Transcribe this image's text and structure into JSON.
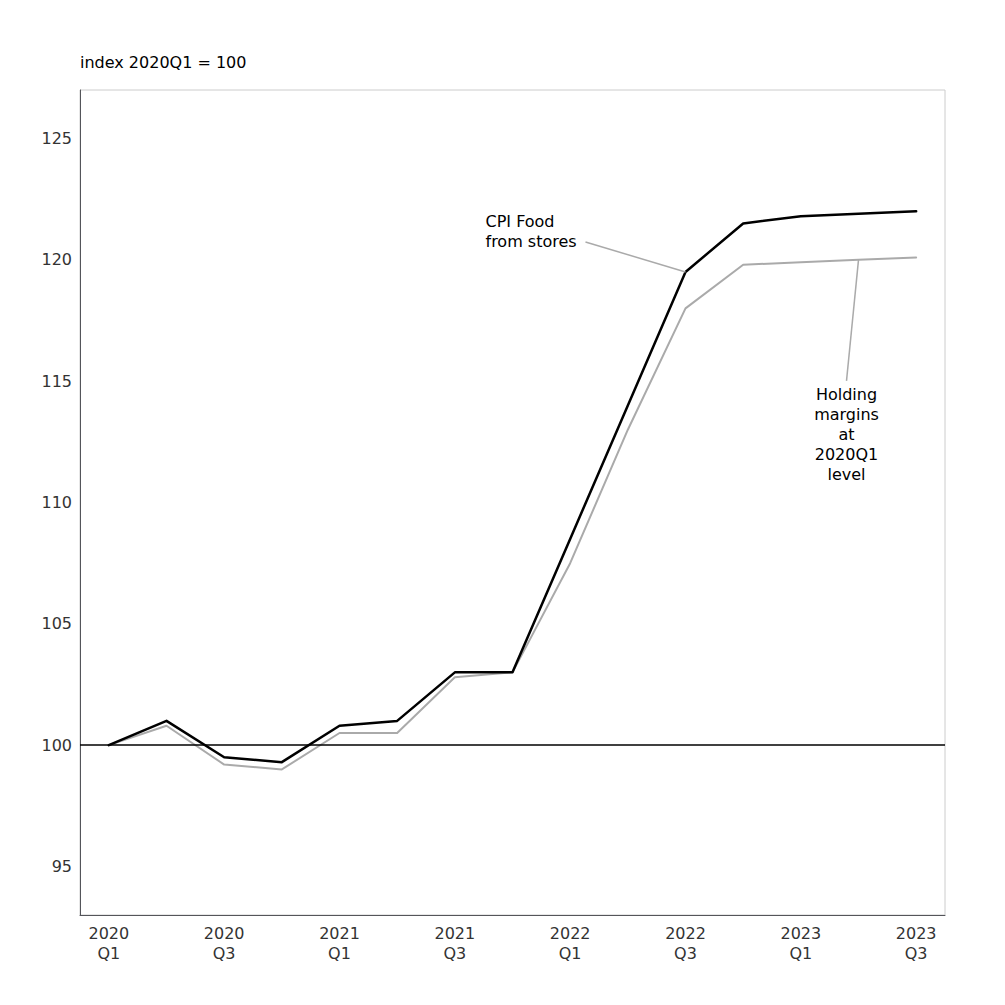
{
  "chart_data": {
    "type": "line",
    "ylabel": "index 2020Q1 = 100",
    "categories": [
      "2020\nQ1",
      null,
      "2020\nQ3",
      null,
      "2021\nQ1",
      null,
      "2021\nQ3",
      null,
      "2022\nQ1",
      null,
      "2022\nQ3",
      null,
      "2023\nQ1",
      null,
      "2023\nQ3"
    ],
    "series": [
      {
        "color": "#aaaaaa",
        "values": [
          100.0,
          100.8,
          99.2,
          99.0,
          100.5,
          100.5,
          102.8,
          103.0,
          107.5,
          113.0,
          118.0,
          119.8,
          119.9,
          120.0,
          120.1
        ]
      },
      {
        "color": "#000000",
        "values": [
          100.0,
          101.0,
          99.5,
          99.3,
          100.8,
          101.0,
          103.0,
          103.0,
          108.5,
          114.0,
          119.5,
          121.5,
          121.8,
          121.9,
          122.0
        ]
      }
    ],
    "hline": 100,
    "annotations": [
      "Holding\nmargins\nat\n2020Q1\nlevel",
      "CPI Food\nfrom stores"
    ],
    "ylim": [
      93,
      127
    ],
    "yticks": [
      95,
      100,
      105,
      110,
      115,
      120,
      125
    ],
    "grid": false
  }
}
